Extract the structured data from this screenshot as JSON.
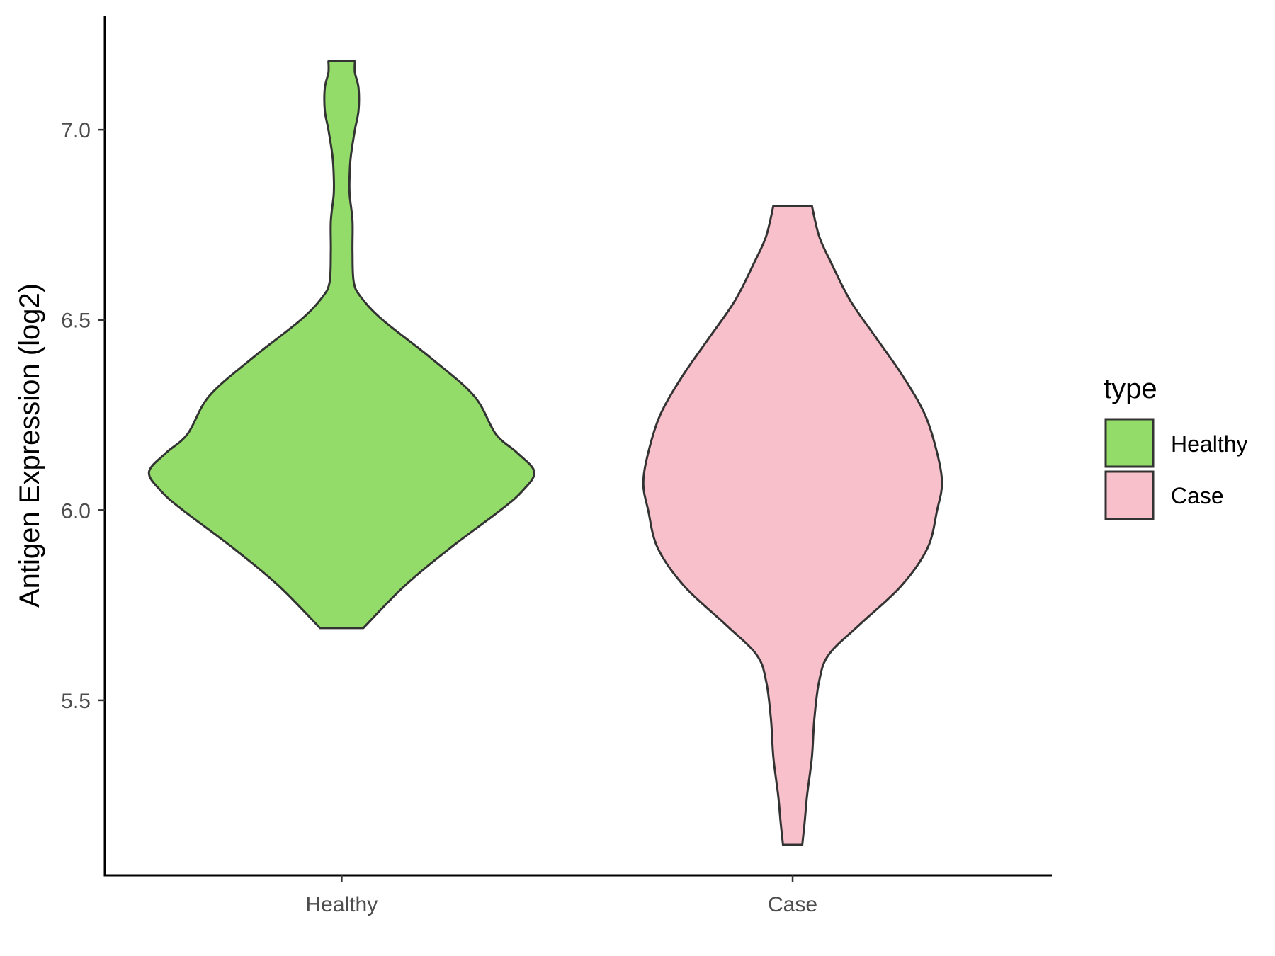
{
  "chart_data": {
    "type": "violin",
    "xlabel": "",
    "ylabel": "Antigen Expression (log2)",
    "categories": [
      "Healthy",
      "Case"
    ],
    "ylim": [
      5.04,
      7.3
    ],
    "yticks": [
      5.5,
      6.0,
      6.5,
      7.0
    ],
    "ytick_labels": [
      "5.5",
      "6.0",
      "6.5",
      "7.0"
    ],
    "grid": false,
    "legend": {
      "title": "type",
      "placement": "right",
      "entries": [
        {
          "label": "Healthy",
          "color": "#93dc69"
        },
        {
          "label": "Case",
          "color": "#f7c0cb"
        }
      ]
    },
    "series": [
      {
        "category": "Healthy",
        "color": "#93dc69",
        "min": 5.69,
        "max": 7.18,
        "density_profile": [
          [
            5.69,
            0.09
          ],
          [
            5.8,
            0.26
          ],
          [
            5.9,
            0.45
          ],
          [
            6.0,
            0.66
          ],
          [
            6.05,
            0.75
          ],
          [
            6.1,
            0.8
          ],
          [
            6.15,
            0.73
          ],
          [
            6.2,
            0.64
          ],
          [
            6.3,
            0.55
          ],
          [
            6.4,
            0.37
          ],
          [
            6.5,
            0.17
          ],
          [
            6.56,
            0.08
          ],
          [
            6.6,
            0.05
          ],
          [
            6.68,
            0.045
          ],
          [
            6.76,
            0.045
          ],
          [
            6.83,
            0.033
          ],
          [
            6.88,
            0.033
          ],
          [
            6.93,
            0.038
          ],
          [
            7.0,
            0.055
          ],
          [
            7.05,
            0.07
          ],
          [
            7.11,
            0.07
          ],
          [
            7.15,
            0.055
          ],
          [
            7.18,
            0.055
          ]
        ]
      },
      {
        "category": "Case",
        "color": "#f7c0cb",
        "min": 5.12,
        "max": 6.8,
        "density_profile": [
          [
            5.12,
            0.04
          ],
          [
            5.18,
            0.05
          ],
          [
            5.25,
            0.06
          ],
          [
            5.35,
            0.08
          ],
          [
            5.45,
            0.09
          ],
          [
            5.55,
            0.11
          ],
          [
            5.62,
            0.15
          ],
          [
            5.7,
            0.28
          ],
          [
            5.8,
            0.45
          ],
          [
            5.9,
            0.56
          ],
          [
            6.0,
            0.6
          ],
          [
            6.07,
            0.62
          ],
          [
            6.15,
            0.6
          ],
          [
            6.25,
            0.55
          ],
          [
            6.35,
            0.46
          ],
          [
            6.45,
            0.35
          ],
          [
            6.55,
            0.24
          ],
          [
            6.65,
            0.16
          ],
          [
            6.72,
            0.11
          ],
          [
            6.8,
            0.08
          ]
        ]
      }
    ]
  }
}
